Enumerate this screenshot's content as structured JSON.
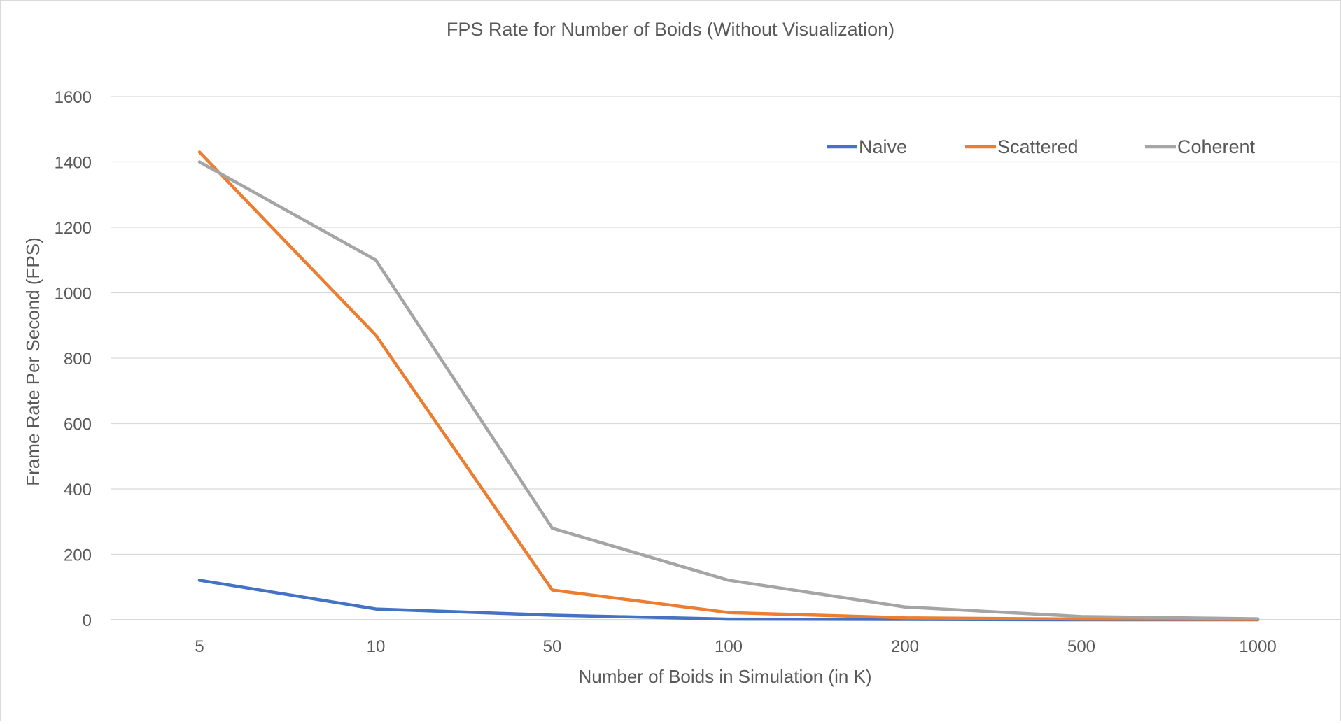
{
  "chart_data": {
    "type": "line",
    "title": "FPS Rate for Number of Boids (Without Visualization)",
    "xlabel": "Number of Boids in Simulation (in K)",
    "ylabel": "Frame Rate Per Second (FPS)",
    "categories": [
      "5",
      "10",
      "50",
      "100",
      "200",
      "500",
      "1000"
    ],
    "ylim": [
      0,
      1600
    ],
    "yticks": [
      0,
      200,
      400,
      600,
      800,
      1000,
      1200,
      1400,
      1600
    ],
    "grid": "horizontal",
    "legend_position": "top-right",
    "series": [
      {
        "name": "Naive",
        "color": "#4472C4",
        "values": [
          121,
          33,
          14,
          2,
          1,
          0,
          0
        ]
      },
      {
        "name": "Scattered",
        "color": "#ED7D31",
        "values": [
          1430,
          870,
          91,
          22,
          6,
          2,
          1
        ]
      },
      {
        "name": "Coherent",
        "color": "#A5A5A5",
        "values": [
          1400,
          1100,
          280,
          121,
          39,
          10,
          3
        ]
      }
    ]
  }
}
